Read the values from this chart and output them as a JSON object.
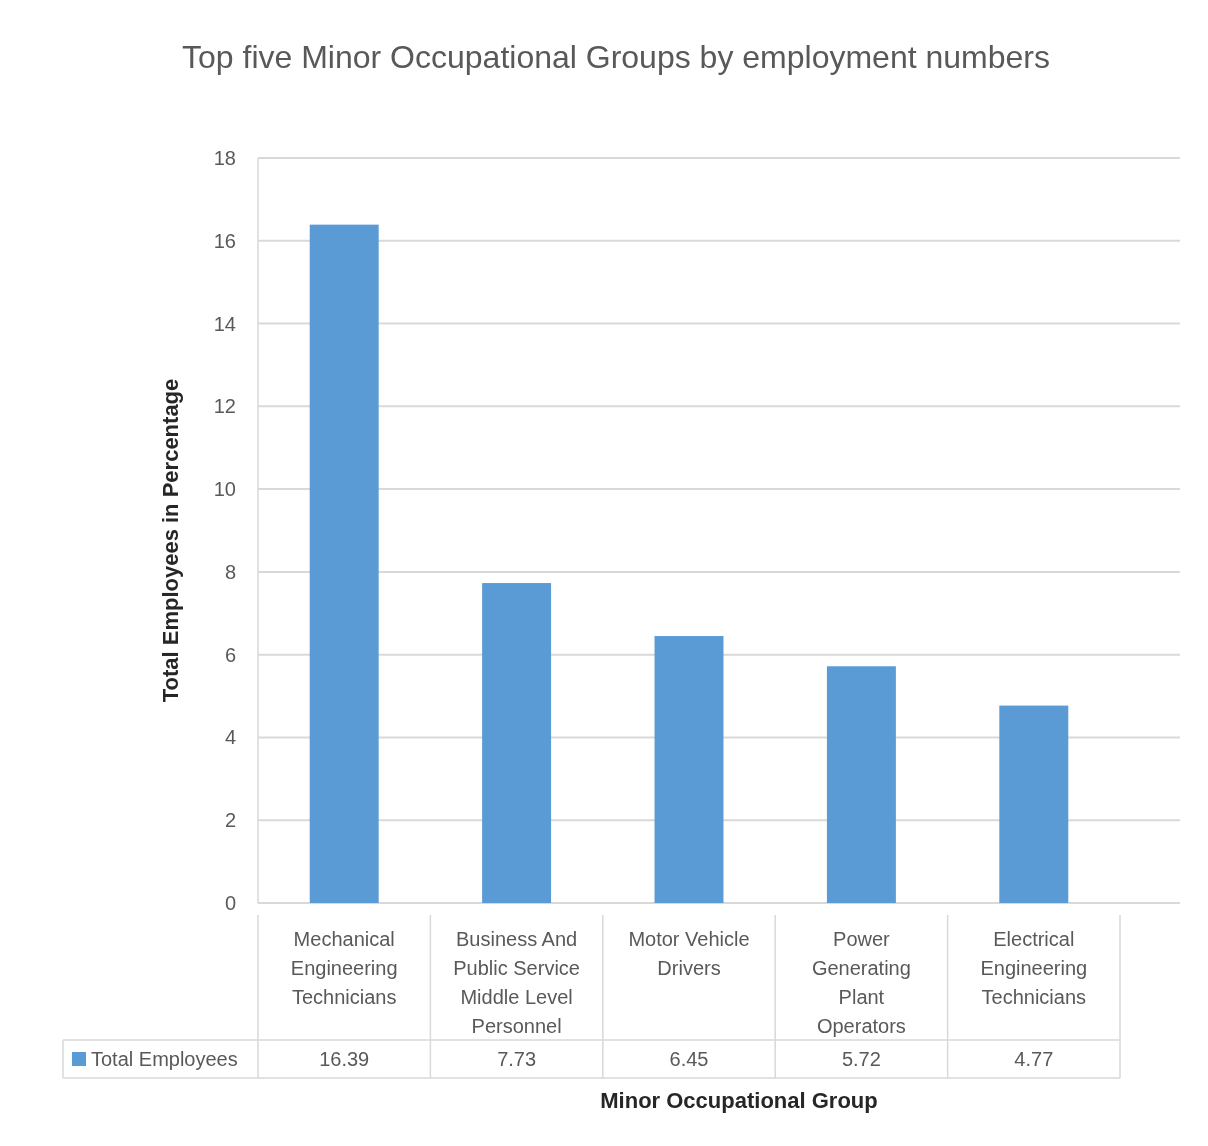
{
  "chart_data": {
    "type": "bar",
    "title": "Top five  Minor Occupational Groups by employment numbers",
    "xlabel": "Minor Occupational Group",
    "ylabel": "Total Employees in Percentage",
    "categories": [
      "Mechanical Engineering Technicians",
      "Business And Public Service Middle Level Personnel",
      "Motor Vehicle Drivers",
      "Power Generating Plant Operators",
      "Electrical Engineering Technicians"
    ],
    "series": [
      {
        "name": "Total Employees",
        "color": "#5b9bd5",
        "values": [
          16.39,
          7.73,
          6.45,
          5.72,
          4.77
        ]
      }
    ],
    "ylim": [
      0,
      18
    ],
    "yticks": [
      0,
      2,
      4,
      6,
      8,
      10,
      12,
      14,
      16,
      18
    ],
    "grid": "y",
    "legend": "bottom",
    "data_labels": true
  }
}
